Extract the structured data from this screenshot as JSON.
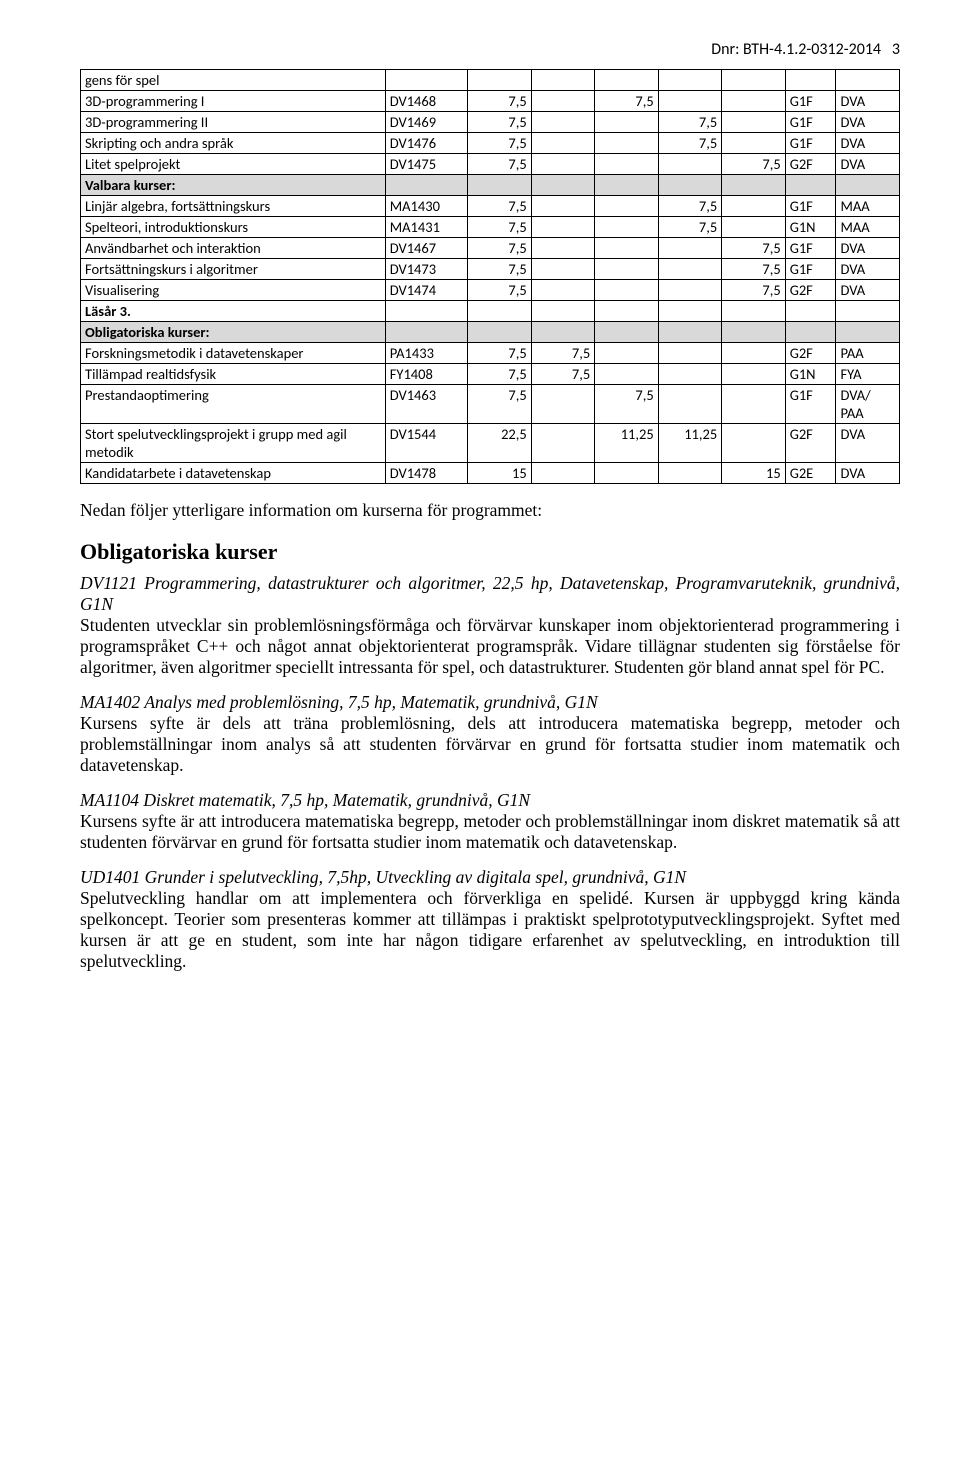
{
  "header": {
    "dnr": "Dnr: BTH-4.1.2-0312-2014",
    "page_no": "3"
  },
  "table": {
    "rows": [
      {
        "type": "label",
        "name": "gens för spel"
      },
      {
        "type": "course",
        "name": "3D-programmering I",
        "code": "DV1468",
        "c1": "7,5",
        "c3": "7,5",
        "lvl": "G1F",
        "area": "DVA"
      },
      {
        "type": "course",
        "name": "3D-programmering II",
        "code": "DV1469",
        "c1": "7,5",
        "c4": "7,5",
        "lvl": "G1F",
        "area": "DVA"
      },
      {
        "type": "course",
        "name": "Skripting och andra språk",
        "code": "DV1476",
        "c1": "7,5",
        "c4": "7,5",
        "lvl": "G1F",
        "area": "DVA"
      },
      {
        "type": "course",
        "name": "Litet spelprojekt",
        "code": "DV1475",
        "c1": "7,5",
        "c5": "7,5",
        "lvl": "G2F",
        "area": "DVA"
      },
      {
        "type": "section",
        "name": "Valbara kurser:"
      },
      {
        "type": "course",
        "name": "Linjär algebra, fortsättningskurs",
        "code": "MA1430",
        "c1": "7,5",
        "c4": "7,5",
        "lvl": "G1F",
        "area": "MAA"
      },
      {
        "type": "course",
        "name": "Spelteori, introduktionskurs",
        "code": "MA1431",
        "c1": "7,5",
        "c4": "7,5",
        "lvl": "G1N",
        "area": "MAA"
      },
      {
        "type": "course",
        "name": "Användbarhet och interaktion",
        "code": "DV1467",
        "c1": "7,5",
        "c5": "7,5",
        "lvl": "G1F",
        "area": "DVA"
      },
      {
        "type": "course",
        "name": "Fortsättningskurs i algoritmer",
        "code": "DV1473",
        "c1": "7,5",
        "c5": "7,5",
        "lvl": "G1F",
        "area": "DVA"
      },
      {
        "type": "course",
        "name": "Visualisering",
        "code": "DV1474",
        "c1": "7,5",
        "c5": "7,5",
        "lvl": "G2F",
        "area": "DVA"
      },
      {
        "type": "plain-bold",
        "name": "Läsår 3."
      },
      {
        "type": "section",
        "name": "Obligatoriska kurser:"
      },
      {
        "type": "course",
        "name": "Forskningsmetodik i datavetenskaper",
        "code": "PA1433",
        "c1": "7,5",
        "c2": "7,5",
        "lvl": "G2F",
        "area": "PAA"
      },
      {
        "type": "course",
        "name": "Tillämpad realtidsfysik",
        "code": "FY1408",
        "c1": "7,5",
        "c2": "7,5",
        "lvl": "G1N",
        "area": "FYA"
      },
      {
        "type": "course",
        "name": "Prestandaoptimering",
        "code": "DV1463",
        "c1": "7,5",
        "c3": "7,5",
        "lvl": "G1F",
        "area": "DVA/\nPAA"
      },
      {
        "type": "course",
        "name": "Stort spelutvecklingsprojekt i grupp med agil metodik",
        "code": "DV1544",
        "c1": "22,5",
        "c3": "11,25",
        "c4": "11,25",
        "lvl": "G2F",
        "area": "DVA"
      },
      {
        "type": "course",
        "name": "Kandidatarbete i datavetenskap",
        "code": "DV1478",
        "c1": "15",
        "c5": "15",
        "lvl": "G2E",
        "area": "DVA"
      }
    ]
  },
  "body": {
    "intro": "Nedan följer ytterligare information om kurserna för programmet:",
    "heading": "Obligatoriska kurser",
    "p1_title": "DV1121 Programmering, datastrukturer och algoritmer, 22,5 hp, Datavetenskap, Programvaruteknik, grundnivå, G1N",
    "p1_body": "Studenten utvecklar sin problemlösningsförmåga och förvärvar kunskaper inom objektorienterad programmering i programspråket C++ och något annat objektorienterat programspråk. Vidare tillägnar studenten sig förståelse för algoritmer, även algoritmer speciellt intressanta för spel, och datastrukturer. Studenten gör bland annat spel för PC.",
    "p2_title": "MA1402 Analys med problemlösning, 7,5 hp, Matematik, grundnivå, G1N",
    "p2_body": "Kursens syfte är dels att träna problemlösning, dels att introducera matematiska begrepp, metoder och problemställningar inom analys så att studenten förvärvar en grund för fortsatta studier inom matematik och datavetenskap.",
    "p3_title": "MA1104 Diskret matematik, 7,5 hp, Matematik, grundnivå, G1N",
    "p3_body": "Kursens syfte är att introducera matematiska begrepp, metoder och problemställningar inom diskret matematik så att studenten förvärvar en grund för fortsatta studier inom matematik och datavetenskap.",
    "p4_title": "UD1401 Grunder i spelutveckling, 7,5hp, Utveckling av digitala spel, grundnivå, G1N",
    "p4_body": "Spelutveckling handlar om att implementera och förverkliga en spelidé. Kursen är uppbyggd kring kända spelkoncept. Teorier som presenteras kommer att tillämpas i praktiskt spelprototyputvecklingsprojekt. Syftet med kursen är att ge en student, som inte har någon tidigare erfarenhet av spelutveckling, en introduktion till spelutveckling."
  }
}
